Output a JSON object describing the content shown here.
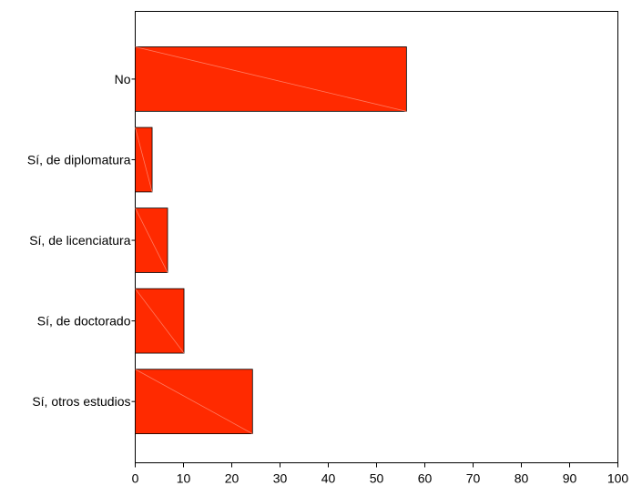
{
  "chart_data": {
    "type": "bar",
    "orientation": "horizontal",
    "categories": [
      "No",
      "Sí, de diplomatura",
      "Sí, de licenciatura",
      "Sí, de doctorado",
      "Sí, otros estudios"
    ],
    "values": [
      56.2,
      3.5,
      6.7,
      10.1,
      24.3
    ],
    "xlim": [
      0,
      100
    ],
    "xticks": [
      0,
      10,
      20,
      30,
      40,
      50,
      60,
      70,
      80,
      90,
      100
    ],
    "title": "",
    "xlabel": "",
    "ylabel": "",
    "grid": false,
    "bar_color": "#ff2a00"
  }
}
